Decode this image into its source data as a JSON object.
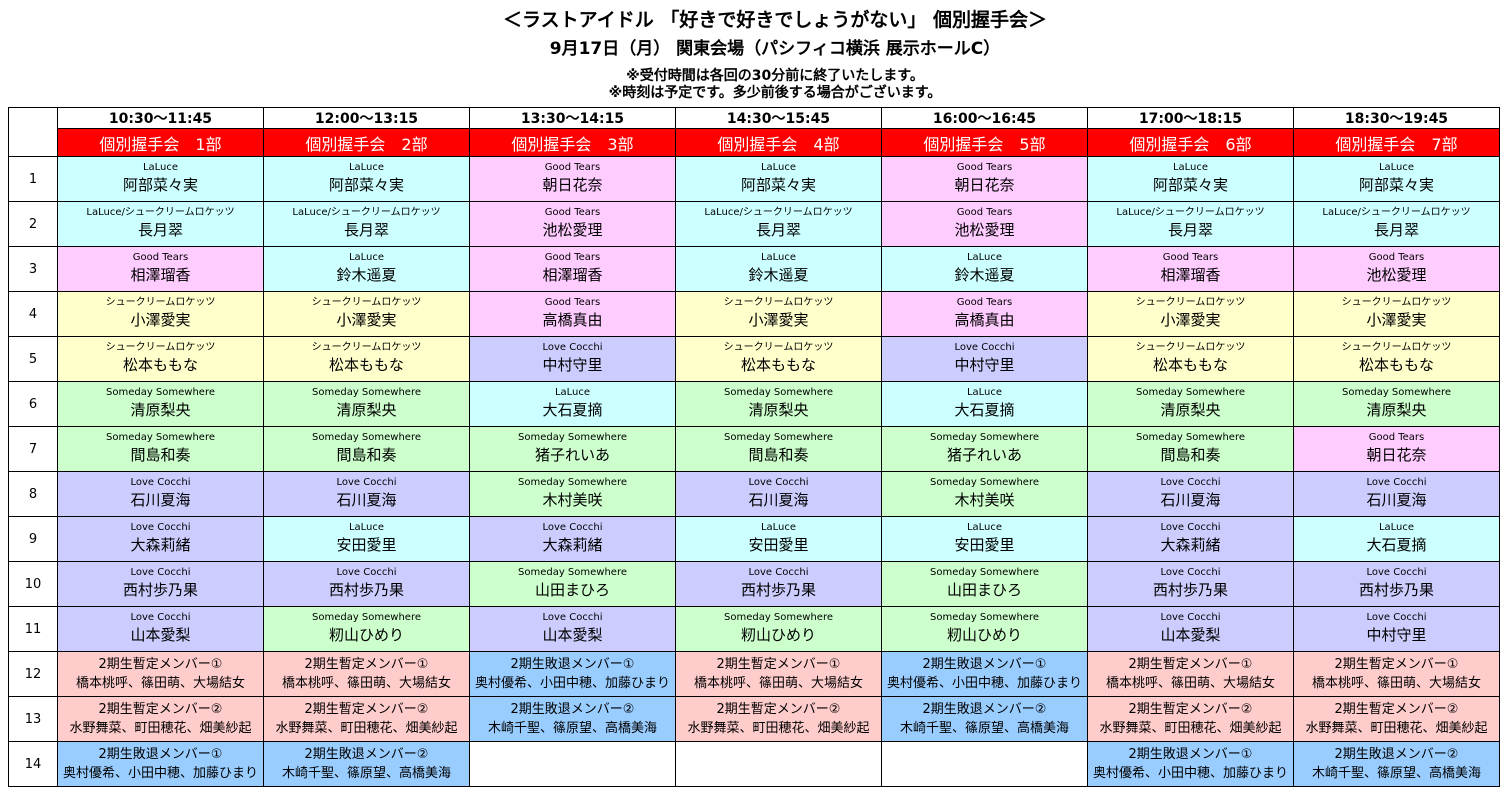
{
  "header": {
    "title": "＜ラストアイドル 「好きで好きでしょうがない」 個別握手会＞",
    "subtitle": "9月17日（月） 関東会場（パシフィコ横浜 展示ホールC）",
    "note1": "※受付時間は各回の30分前に終了いたします。",
    "note2": "※時刻は予定です。多少前後する場合がございます。"
  },
  "colors": {
    "LaLuce": "#ccffff",
    "LaLuce/シュークリームロケッツ": "#ccffff",
    "Good Tears": "#ffccff",
    "シュークリームロケッツ": "#ffffcc",
    "Love Cocchi": "#ccccff",
    "Someday Somewhere": "#ccffcc",
    "2期生暫定メンバー①": "#ffcccc",
    "2期生暫定メンバー②": "#ffcccc",
    "2期生敗退メンバー①": "#99ccff",
    "2期生敗退メンバー②": "#99ccff",
    "part_header": "#ff0000"
  },
  "row_numbers": [
    "1",
    "2",
    "3",
    "4",
    "5",
    "6",
    "7",
    "8",
    "9",
    "10",
    "11",
    "12",
    "13",
    "14"
  ],
  "columns": [
    {
      "time": "10:30～11:45",
      "part": "個別握手会　1部",
      "cells": [
        {
          "g": "LaLuce",
          "n": "阿部菜々実"
        },
        {
          "g": "LaLuce/シュークリームロケッツ",
          "n": "長月翠"
        },
        {
          "g": "Good Tears",
          "n": "相澤瑠香"
        },
        {
          "g": "シュークリームロケッツ",
          "n": "小澤愛実"
        },
        {
          "g": "シュークリームロケッツ",
          "n": "松本ももな"
        },
        {
          "g": "Someday Somewhere",
          "n": "清原梨央"
        },
        {
          "g": "Someday Somewhere",
          "n": "間島和奏"
        },
        {
          "g": "Love Cocchi",
          "n": "石川夏海"
        },
        {
          "g": "Love Cocchi",
          "n": "大森莉緒"
        },
        {
          "g": "Love Cocchi",
          "n": "西村歩乃果"
        },
        {
          "g": "Love Cocchi",
          "n": "山本愛梨"
        },
        {
          "g": "2期生暫定メンバー①",
          "n": "橋本桃呼、篠田萌、大場結女"
        },
        {
          "g": "2期生暫定メンバー②",
          "n": "水野舞菜、町田穂花、畑美紗起"
        },
        {
          "g": "2期生敗退メンバー①",
          "n": "奥村優希、小田中穂、加藤ひまり"
        }
      ]
    },
    {
      "time": "12:00～13:15",
      "part": "個別握手会　2部",
      "cells": [
        {
          "g": "LaLuce",
          "n": "阿部菜々実"
        },
        {
          "g": "LaLuce/シュークリームロケッツ",
          "n": "長月翠"
        },
        {
          "g": "LaLuce",
          "n": "鈴木遥夏"
        },
        {
          "g": "シュークリームロケッツ",
          "n": "小澤愛実"
        },
        {
          "g": "シュークリームロケッツ",
          "n": "松本ももな"
        },
        {
          "g": "Someday Somewhere",
          "n": "清原梨央"
        },
        {
          "g": "Someday Somewhere",
          "n": "間島和奏"
        },
        {
          "g": "Love Cocchi",
          "n": "石川夏海"
        },
        {
          "g": "LaLuce",
          "n": "安田愛里"
        },
        {
          "g": "Love Cocchi",
          "n": "西村歩乃果"
        },
        {
          "g": "Someday Somewhere",
          "n": "籾山ひめり"
        },
        {
          "g": "2期生暫定メンバー①",
          "n": "橋本桃呼、篠田萌、大場結女"
        },
        {
          "g": "2期生暫定メンバー②",
          "n": "水野舞菜、町田穂花、畑美紗起"
        },
        {
          "g": "2期生敗退メンバー②",
          "n": "木崎千聖、篠原望、高橋美海"
        }
      ]
    },
    {
      "time": "13:30～14:15",
      "part": "個別握手会　3部",
      "cells": [
        {
          "g": "Good Tears",
          "n": "朝日花奈"
        },
        {
          "g": "Good Tears",
          "n": "池松愛理"
        },
        {
          "g": "Good Tears",
          "n": "相澤瑠香"
        },
        {
          "g": "Good Tears",
          "n": "高橋真由"
        },
        {
          "g": "Love Cocchi",
          "n": "中村守里"
        },
        {
          "g": "LaLuce",
          "n": "大石夏摘"
        },
        {
          "g": "Someday Somewhere",
          "n": "猪子れいあ"
        },
        {
          "g": "Someday Somewhere",
          "n": "木村美咲"
        },
        {
          "g": "Love Cocchi",
          "n": "大森莉緒"
        },
        {
          "g": "Someday Somewhere",
          "n": "山田まひろ"
        },
        {
          "g": "Love Cocchi",
          "n": "山本愛梨"
        },
        {
          "g": "2期生敗退メンバー①",
          "n": "奥村優希、小田中穂、加藤ひまり"
        },
        {
          "g": "2期生敗退メンバー②",
          "n": "木崎千聖、篠原望、高橋美海"
        },
        null
      ]
    },
    {
      "time": "14:30～15:45",
      "part": "個別握手会　4部",
      "cells": [
        {
          "g": "LaLuce",
          "n": "阿部菜々実"
        },
        {
          "g": "LaLuce/シュークリームロケッツ",
          "n": "長月翠"
        },
        {
          "g": "LaLuce",
          "n": "鈴木遥夏"
        },
        {
          "g": "シュークリームロケッツ",
          "n": "小澤愛実"
        },
        {
          "g": "シュークリームロケッツ",
          "n": "松本ももな"
        },
        {
          "g": "Someday Somewhere",
          "n": "清原梨央"
        },
        {
          "g": "Someday Somewhere",
          "n": "間島和奏"
        },
        {
          "g": "Love Cocchi",
          "n": "石川夏海"
        },
        {
          "g": "LaLuce",
          "n": "安田愛里"
        },
        {
          "g": "Love Cocchi",
          "n": "西村歩乃果"
        },
        {
          "g": "Someday Somewhere",
          "n": "籾山ひめり"
        },
        {
          "g": "2期生暫定メンバー①",
          "n": "橋本桃呼、篠田萌、大場結女"
        },
        {
          "g": "2期生暫定メンバー②",
          "n": "水野舞菜、町田穂花、畑美紗起"
        },
        null
      ]
    },
    {
      "time": "16:00～16:45",
      "part": "個別握手会　5部",
      "cells": [
        {
          "g": "Good Tears",
          "n": "朝日花奈"
        },
        {
          "g": "Good Tears",
          "n": "池松愛理"
        },
        {
          "g": "LaLuce",
          "n": "鈴木遥夏"
        },
        {
          "g": "Good Tears",
          "n": "高橋真由"
        },
        {
          "g": "Love Cocchi",
          "n": "中村守里"
        },
        {
          "g": "LaLuce",
          "n": "大石夏摘"
        },
        {
          "g": "Someday Somewhere",
          "n": "猪子れいあ"
        },
        {
          "g": "Someday Somewhere",
          "n": "木村美咲"
        },
        {
          "g": "LaLuce",
          "n": "安田愛里"
        },
        {
          "g": "Someday Somewhere",
          "n": "山田まひろ"
        },
        {
          "g": "Someday Somewhere",
          "n": "籾山ひめり"
        },
        {
          "g": "2期生敗退メンバー①",
          "n": "奥村優希、小田中穂、加藤ひまり"
        },
        {
          "g": "2期生敗退メンバー②",
          "n": "木崎千聖、篠原望、高橋美海"
        },
        null
      ]
    },
    {
      "time": "17:00～18:15",
      "part": "個別握手会　6部",
      "cells": [
        {
          "g": "LaLuce",
          "n": "阿部菜々実"
        },
        {
          "g": "LaLuce/シュークリームロケッツ",
          "n": "長月翠"
        },
        {
          "g": "Good Tears",
          "n": "相澤瑠香"
        },
        {
          "g": "シュークリームロケッツ",
          "n": "小澤愛実"
        },
        {
          "g": "シュークリームロケッツ",
          "n": "松本ももな"
        },
        {
          "g": "Someday Somewhere",
          "n": "清原梨央"
        },
        {
          "g": "Someday Somewhere",
          "n": "間島和奏"
        },
        {
          "g": "Love Cocchi",
          "n": "石川夏海"
        },
        {
          "g": "Love Cocchi",
          "n": "大森莉緒"
        },
        {
          "g": "Love Cocchi",
          "n": "西村歩乃果"
        },
        {
          "g": "Love Cocchi",
          "n": "山本愛梨"
        },
        {
          "g": "2期生暫定メンバー①",
          "n": "橋本桃呼、篠田萌、大場結女"
        },
        {
          "g": "2期生暫定メンバー②",
          "n": "水野舞菜、町田穂花、畑美紗起"
        },
        {
          "g": "2期生敗退メンバー①",
          "n": "奥村優希、小田中穂、加藤ひまり"
        }
      ]
    },
    {
      "time": "18:30～19:45",
      "part": "個別握手会　7部",
      "cells": [
        {
          "g": "LaLuce",
          "n": "阿部菜々実"
        },
        {
          "g": "LaLuce/シュークリームロケッツ",
          "n": "長月翠"
        },
        {
          "g": "Good Tears",
          "n": "池松愛理"
        },
        {
          "g": "シュークリームロケッツ",
          "n": "小澤愛実"
        },
        {
          "g": "シュークリームロケッツ",
          "n": "松本ももな"
        },
        {
          "g": "Someday Somewhere",
          "n": "清原梨央"
        },
        {
          "g": "Good Tears",
          "n": "朝日花奈"
        },
        {
          "g": "Love Cocchi",
          "n": "石川夏海"
        },
        {
          "g": "LaLuce",
          "n": "大石夏摘"
        },
        {
          "g": "Love Cocchi",
          "n": "西村歩乃果"
        },
        {
          "g": "Love Cocchi",
          "n": "中村守里"
        },
        {
          "g": "2期生暫定メンバー①",
          "n": "橋本桃呼、篠田萌、大場結女"
        },
        {
          "g": "2期生暫定メンバー②",
          "n": "水野舞菜、町田穂花、畑美紗起"
        },
        {
          "g": "2期生敗退メンバー②",
          "n": "木崎千聖、篠原望、高橋美海"
        }
      ]
    }
  ]
}
